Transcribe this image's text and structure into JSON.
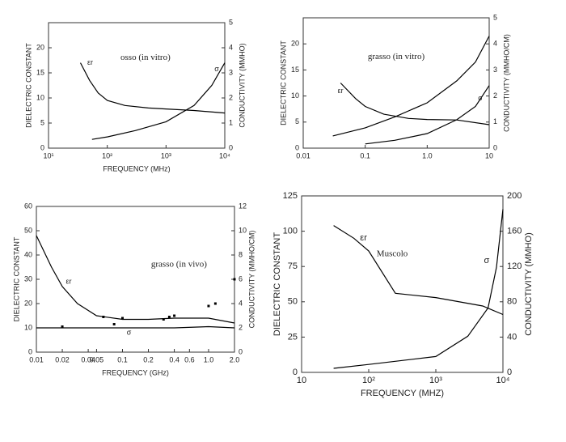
{
  "chart_data": [
    {
      "type": "line",
      "title": "osso (in vitro)",
      "xlabel": "FREQUENCY (MHz)",
      "ylabel": "DIELECTRIC CONSTANT",
      "y2label": "CONDUCTIVITY (MMHO)",
      "xscale": "log",
      "xlim": [
        10,
        10000
      ],
      "xticks": [
        {
          "value": 10,
          "label": "10¹"
        },
        {
          "value": 100,
          "label": "10²"
        },
        {
          "value": 1000,
          "label": "10³"
        },
        {
          "value": 10000,
          "label": "10⁴"
        }
      ],
      "ylim": [
        0,
        25
      ],
      "yticks": [
        0,
        5,
        10,
        15,
        20
      ],
      "y2lim": [
        0,
        5
      ],
      "y2ticks": [
        0,
        1,
        2,
        3,
        4,
        5
      ],
      "series": [
        {
          "name": "εr",
          "color": "#000000",
          "x": [
            35,
            50,
            70,
            100,
            200,
            500,
            1000,
            3000,
            10000
          ],
          "values": [
            17,
            13.5,
            11,
            9.5,
            8.5,
            8,
            7.8,
            7.5,
            7
          ]
        },
        {
          "name": "σ",
          "color": "#000000",
          "axis": "y2",
          "x": [
            55,
            100,
            300,
            1000,
            3000,
            6000,
            10000
          ],
          "values": [
            0.35,
            0.45,
            0.7,
            1.05,
            1.7,
            2.5,
            3.4
          ]
        }
      ]
    },
    {
      "type": "line",
      "title": "grasso (in vitro)",
      "ylabel": "DIELECTRIC CONSTANT",
      "y2label": "CONDUCTIVITY (MMHO/CM)",
      "xscale": "log",
      "xlim": [
        0.01,
        10
      ],
      "xticks": [
        0.01,
        0.1,
        {
          "value": 1,
          "label": "1.0"
        },
        10
      ],
      "ylim": [
        0,
        25
      ],
      "yticks": [
        0,
        5,
        10,
        15,
        20
      ],
      "y2lim": [
        0,
        5
      ],
      "y2ticks": [
        0,
        1,
        2,
        3,
        4,
        5
      ],
      "series": [
        {
          "name": "εr",
          "color": "#000000",
          "x": [
            0.04,
            0.07,
            0.1,
            0.2,
            0.5,
            1,
            3,
            10
          ],
          "values": [
            12.5,
            9.5,
            8,
            6.5,
            5.7,
            5.5,
            5.4,
            4.5
          ]
        },
        {
          "color": "#000000",
          "axis": "y2",
          "x": [
            0.03,
            0.1,
            0.3,
            1,
            3,
            6,
            10
          ],
          "values": [
            0.47,
            0.78,
            1.2,
            1.74,
            2.58,
            3.3,
            4.3
          ]
        },
        {
          "name": "σ",
          "color": "#000000",
          "axis": "y2",
          "x": [
            0.1,
            0.3,
            1,
            3,
            6,
            10
          ],
          "values": [
            0.16,
            0.3,
            0.56,
            1.09,
            1.6,
            2.4
          ]
        }
      ]
    },
    {
      "type": "line",
      "title": "grasso (in vivo)",
      "xlabel": "FREQUENCY (GHz)",
      "ylabel": "DIELECTRIC CONSTANT",
      "y2label": "CONDUCTIVITY (MMHO/CM)",
      "xscale": "log",
      "xlim": [
        0.01,
        2
      ],
      "xticks": [
        0.01,
        0.02,
        0.04,
        0.05,
        0.1,
        0.2,
        0.4,
        0.6,
        {
          "value": 1,
          "label": "1.0"
        },
        {
          "value": 2,
          "label": "2.0"
        }
      ],
      "ylim": [
        0,
        60
      ],
      "yticks": [
        0,
        10,
        20,
        30,
        40,
        50,
        60
      ],
      "y2lim": [
        0,
        12
      ],
      "y2ticks": [
        0,
        2,
        4,
        6,
        8,
        10,
        12
      ],
      "series": [
        {
          "name": "εr",
          "color": "#000000",
          "x": [
            0.01,
            0.015,
            0.02,
            0.03,
            0.05,
            0.1,
            0.2,
            0.4,
            1,
            2
          ],
          "values": [
            48,
            35,
            27,
            20,
            15,
            13.5,
            13.5,
            14,
            14,
            12
          ]
        },
        {
          "name": "σ",
          "color": "#000000",
          "axis": "y2",
          "x": [
            0.01,
            0.05,
            0.1,
            0.4,
            1,
            2
          ],
          "values": [
            2,
            2,
            2,
            2,
            2.1,
            2
          ]
        },
        {
          "color": "#000000",
          "axis": "y2",
          "mode": "markers",
          "x": [
            0.02,
            0.06,
            0.08,
            0.1,
            0.3,
            0.35,
            0.4,
            1,
            1.2,
            2
          ],
          "values": [
            2.1,
            2.9,
            2.3,
            2.8,
            2.7,
            2.9,
            3.0,
            3.8,
            4.0,
            6.0
          ]
        }
      ]
    },
    {
      "type": "line",
      "title": "Muscolo",
      "xlabel": "FREQUENCY (MHZ)",
      "ylabel": "DIELECTRIC CONSTANT",
      "y2label": "CONDUCTIVITY (MMHO)",
      "xscale": "log",
      "xlim": [
        10,
        10000
      ],
      "xticks": [
        10,
        {
          "value": 100,
          "label": "10²"
        },
        {
          "value": 1000,
          "label": "10³"
        },
        {
          "value": 10000,
          "label": "10⁴"
        }
      ],
      "ylim": [
        0,
        125
      ],
      "yticks": [
        0,
        25,
        50,
        75,
        100,
        125
      ],
      "y2lim": [
        0,
        200
      ],
      "y2ticks": [
        0,
        40,
        80,
        120,
        160,
        200
      ],
      "series": [
        {
          "name": "εr",
          "color": "#000000",
          "x": [
            30,
            60,
            100,
            250,
            1000,
            5000,
            10000
          ],
          "values": [
            104,
            95,
            86,
            56,
            53,
            47,
            41
          ]
        },
        {
          "name": "σ",
          "color": "#000000",
          "axis": "y2",
          "x": [
            30,
            100,
            1000,
            3000,
            6000,
            8000,
            10000
          ],
          "values": [
            4.6,
            9,
            18,
            41,
            73,
            119,
            185
          ]
        }
      ]
    }
  ]
}
